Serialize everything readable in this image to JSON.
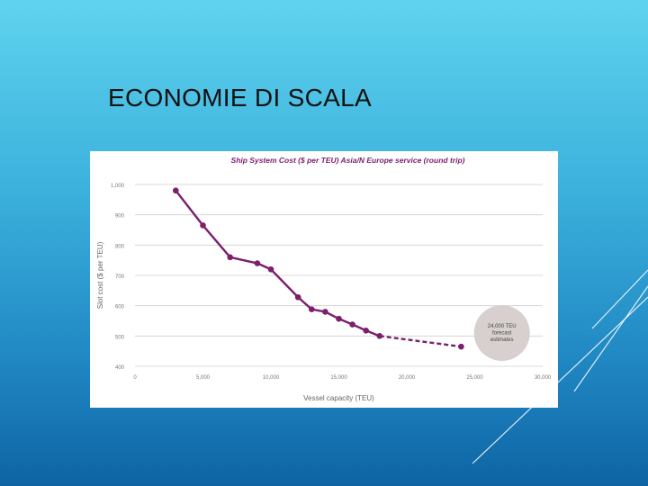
{
  "slide": {
    "title": "ECONOMIE DI SCALA"
  },
  "chart_data": {
    "type": "line",
    "title": "Ship System Cost ($ per TEU) Asia/N Europe service (round trip)",
    "xlabel": "Vessel capacity (TEU)",
    "ylabel": "Slot cost ($ per TEU)",
    "xlim": [
      0,
      30000
    ],
    "ylim": [
      400,
      1000
    ],
    "x_ticks": [
      0,
      5000,
      10000,
      15000,
      20000,
      25000,
      30000
    ],
    "x_tick_labels": [
      "0",
      "5,000",
      "10,000",
      "15,000",
      "20,000",
      "25,000",
      "30,000"
    ],
    "y_ticks": [
      400,
      500,
      600,
      700,
      800,
      900,
      1000
    ],
    "y_tick_labels": [
      "400",
      "500",
      "600",
      "700",
      "800",
      "900",
      "1,000"
    ],
    "grid": "horizontal",
    "series": [
      {
        "values_x": [
          3000,
          5000,
          7000,
          9000,
          10000,
          12000,
          13000,
          14000,
          15000,
          16000,
          17000,
          18000
        ],
        "values_y": [
          980,
          865,
          760,
          740,
          720,
          628,
          588,
          580,
          557,
          538,
          518,
          500
        ],
        "style": "solid",
        "color": "#7b1f6e"
      },
      {
        "values_x": [
          18000,
          24000
        ],
        "values_y": [
          500,
          465
        ],
        "style": "dashed",
        "color": "#7b1f6e"
      }
    ],
    "annotation": {
      "lines": [
        "24,000 TEU",
        "forecast",
        "estimates"
      ],
      "x": 27000,
      "y": 510,
      "color": "#d7d0ce"
    }
  }
}
